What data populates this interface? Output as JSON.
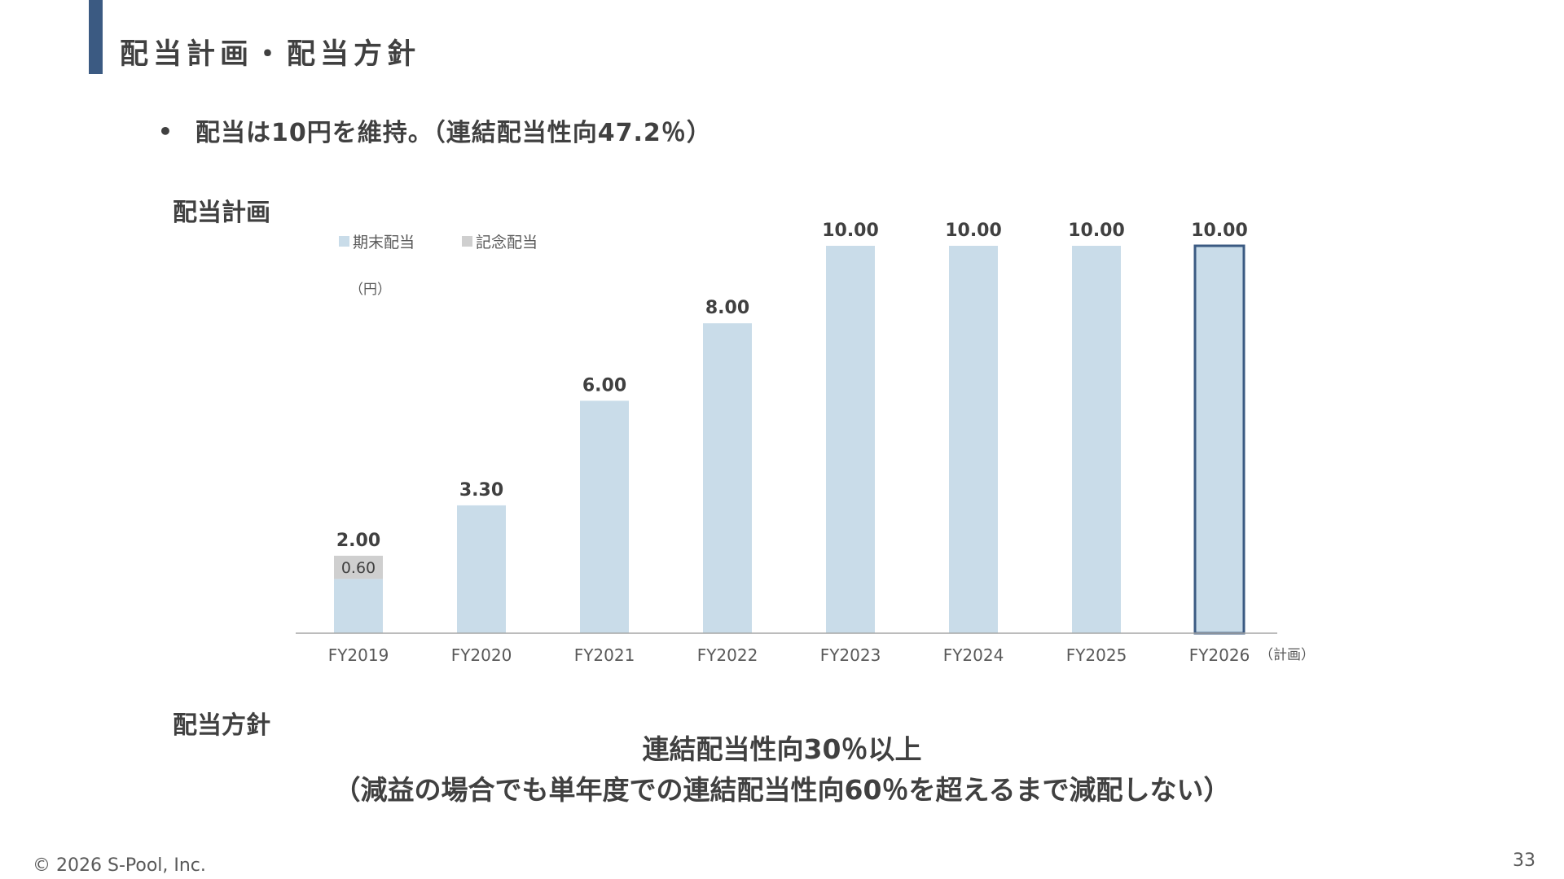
{
  "header": {
    "title": "配当計画・配当方針"
  },
  "bullet": {
    "marker": "•",
    "text": "配当は10円を維持。（連結配当性向47.2％）"
  },
  "sections": {
    "plan_heading": "配当計画",
    "policy_heading": "配当方針"
  },
  "chart_data": {
    "type": "bar",
    "stacked": true,
    "categories": [
      "FY2019",
      "FY2020",
      "FY2021",
      "FY2022",
      "FY2023",
      "FY2024",
      "FY2025",
      "FY2026"
    ],
    "series": [
      {
        "name": "期末配当",
        "values": [
          1.4,
          3.3,
          6.0,
          8.0,
          10.0,
          10.0,
          10.0,
          10.0
        ],
        "color": "#c9dce9"
      },
      {
        "name": "記念配当",
        "values": [
          0.6,
          0,
          0,
          0,
          0,
          0,
          0,
          0
        ],
        "color": "#cfcfcf"
      }
    ],
    "total_labels": [
      "2.00",
      "3.30",
      "6.00",
      "8.00",
      "10.00",
      "10.00",
      "10.00",
      "10.00"
    ],
    "segment_labels": [
      "0.60",
      "",
      "",
      "",
      "",
      "",
      "",
      ""
    ],
    "unit": "（円）",
    "plan_note": "（計画）",
    "highlighted_category": "FY2026",
    "highlight_color": "#3b5a82",
    "ylim": [
      0,
      10
    ],
    "grid": false,
    "legend_position": "top-left"
  },
  "policy": {
    "line1": "連結配当性向30％以上",
    "line2": "（減益の場合でも単年度での連結配当性向60％を超えるまで減配しない）"
  },
  "footer": {
    "copyright": "© 2026 S-Pool, Inc.",
    "page_number": "33"
  }
}
